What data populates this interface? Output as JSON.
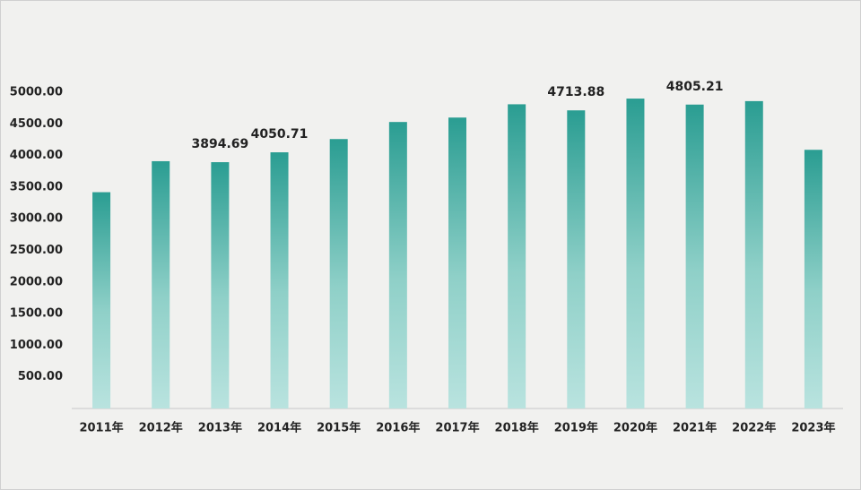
{
  "chart_data": {
    "type": "bar",
    "categories": [
      "2011年",
      "2012年",
      "2013年",
      "2014年",
      "2015年",
      "2016年",
      "2017年",
      "2018年",
      "2019年",
      "2020年",
      "2021年",
      "2022年",
      "2023年"
    ],
    "values": [
      3420,
      3910,
      3894.69,
      4050.71,
      4260,
      4530,
      4600,
      4810,
      4713.88,
      4900,
      4805.21,
      4860,
      4090
    ],
    "value_labels": [
      null,
      null,
      "3894.69",
      "4050.71",
      null,
      null,
      null,
      null,
      "4713.88",
      null,
      "4805.21",
      null,
      null
    ],
    "color": "#2a9d92",
    "ylim": [
      0,
      5000
    ],
    "yticks": [
      {
        "value": 500,
        "label": "500.00"
      },
      {
        "value": 1000,
        "label": "1000.00"
      },
      {
        "value": 1500,
        "label": "1500.00"
      },
      {
        "value": 2000,
        "label": "2000.00"
      },
      {
        "value": 2500,
        "label": "2500.00"
      },
      {
        "value": 3000,
        "label": "3000.00"
      },
      {
        "value": 3500,
        "label": "3500.00"
      },
      {
        "value": 4000,
        "label": "4000.00"
      },
      {
        "value": 4500,
        "label": "4500.00"
      },
      {
        "value": 5000,
        "label": "5000.00"
      }
    ],
    "grid": false
  }
}
